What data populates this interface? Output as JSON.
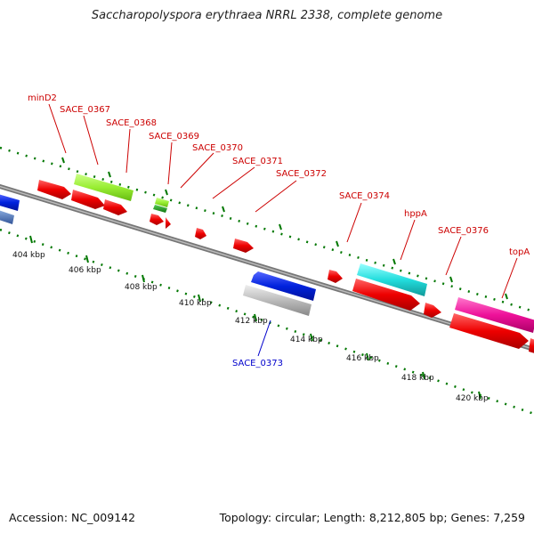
{
  "title": "Saccharopolyspora erythraea NRRL 2338, complete genome",
  "footer": {
    "accession": "Accession: NC_009142",
    "summary": "Topology: circular; Length: 8,212,805 bp; Genes: 7,259"
  },
  "scale_labels": [
    "404 kbp",
    "406 kbp",
    "408 kbp",
    "410 kbp",
    "412 kbp",
    "414 kbp",
    "416 kbp",
    "418 kbp",
    "420 kbp"
  ],
  "gene_labels": [
    {
      "text": "minD2",
      "color": "#cc0000"
    },
    {
      "text": "SACE_0367",
      "color": "#cc0000"
    },
    {
      "text": "SACE_0368",
      "color": "#cc0000"
    },
    {
      "text": "SACE_0369",
      "color": "#cc0000"
    },
    {
      "text": "SACE_0370",
      "color": "#cc0000"
    },
    {
      "text": "SACE_0371",
      "color": "#cc0000"
    },
    {
      "text": "SACE_0372",
      "color": "#cc0000"
    },
    {
      "text": "SACE_0374",
      "color": "#cc0000"
    },
    {
      "text": "hppA",
      "color": "#cc0000"
    },
    {
      "text": "SACE_0376",
      "color": "#cc0000"
    },
    {
      "text": "topA",
      "color": "#cc0000"
    },
    {
      "text": "SACE_0373",
      "color": "#0000cc"
    }
  ],
  "colors": {
    "gene_forward": "#ee0000",
    "gene_reverse_blue": "#0022dd",
    "backbone": "#888888",
    "tick": "#007700",
    "lime": "#99ee33",
    "cyan": "#22dddd",
    "magenta": "#ee1199",
    "grey_feature": "#bbbbbb"
  }
}
